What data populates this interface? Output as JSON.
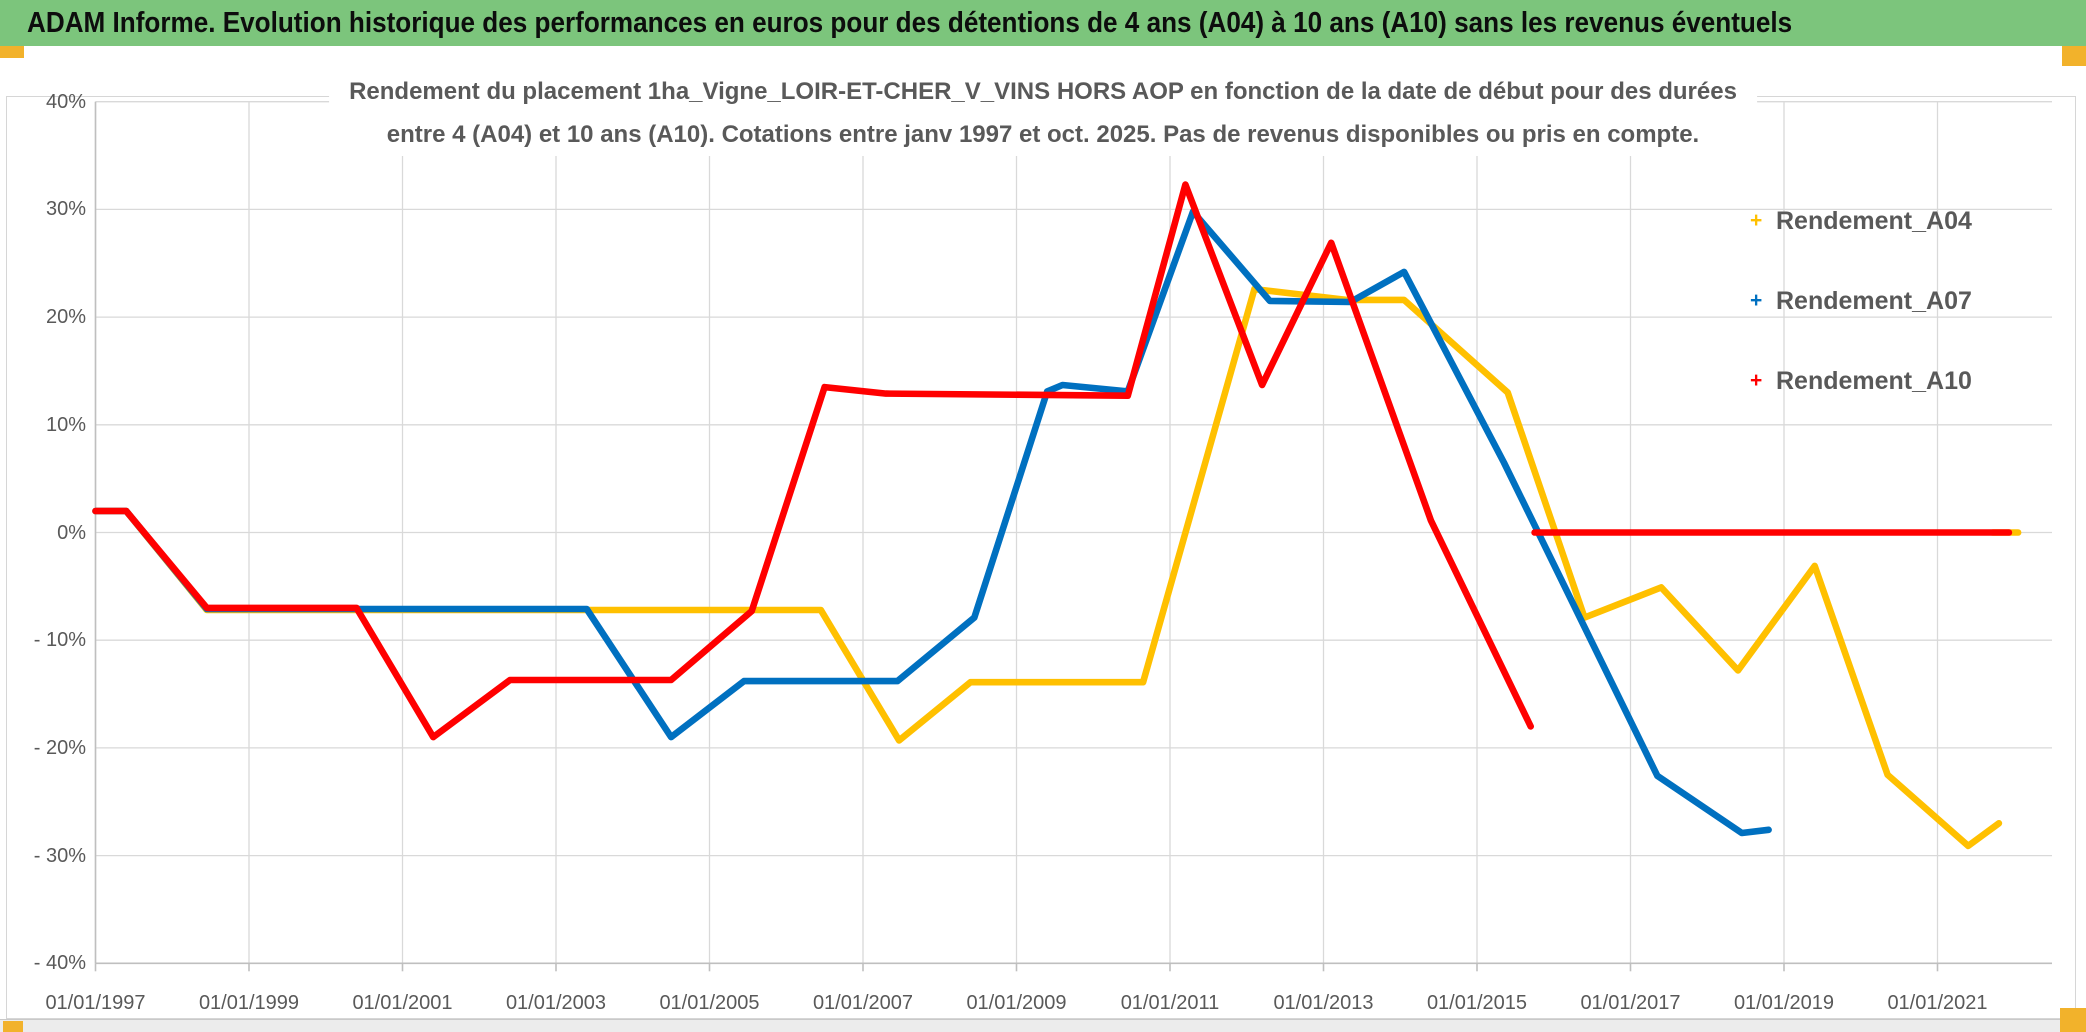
{
  "header": {
    "title": "ADAM Informe. Evolution historique des performances en euros pour des détentions de 4 ans (A04) à 10 ans (A10) sans les revenus éventuels"
  },
  "colors": {
    "header_bg": "#7CC57C",
    "accent": "#F2B22B",
    "grid": "#D9D9D9",
    "axis": "#BFBFBF",
    "text": "#595959"
  },
  "chart_data": {
    "type": "line",
    "title_line1": "Rendement du placement 1ha_Vigne_LOIR-ET-CHER_V_VINS HORS AOP en fonction de la date de début pour des durées",
    "title_line2": "entre 4 (A04) et 10 ans (A10). Cotations entre janv 1997 et oct. 2025. Pas de revenus disponibles ou pris en compte.",
    "xlabel": "",
    "ylabel": "",
    "grid": true,
    "legend_position": "right-top",
    "x_range_years": [
      1997,
      2022.5
    ],
    "ylim": [
      -40,
      40
    ],
    "y_ticks": [
      {
        "label": "40%",
        "value": 40
      },
      {
        "label": "30%",
        "value": 30
      },
      {
        "label": "20%",
        "value": 20
      },
      {
        "label": "10%",
        "value": 10
      },
      {
        "label": "0%",
        "value": 0
      },
      {
        "label": "- 10%",
        "value": -10
      },
      {
        "label": "- 20%",
        "value": -20
      },
      {
        "label": "- 30%",
        "value": -30
      },
      {
        "label": "- 40%",
        "value": -40
      }
    ],
    "x_ticks": [
      {
        "label": "01/01/1997",
        "year": 1997
      },
      {
        "label": "01/01/1999",
        "year": 1999
      },
      {
        "label": "01/01/2001",
        "year": 2001
      },
      {
        "label": "01/01/2003",
        "year": 2003
      },
      {
        "label": "01/01/2005",
        "year": 2005
      },
      {
        "label": "01/01/2007",
        "year": 2007
      },
      {
        "label": "01/01/2009",
        "year": 2009
      },
      {
        "label": "01/01/2011",
        "year": 2011
      },
      {
        "label": "01/01/2013",
        "year": 2013
      },
      {
        "label": "01/01/2015",
        "year": 2015
      },
      {
        "label": "01/01/2017",
        "year": 2017
      },
      {
        "label": "01/01/2019",
        "year": 2019
      },
      {
        "label": "01/01/2021",
        "year": 2021
      }
    ],
    "series": [
      {
        "name": "Rendement_A04",
        "color": "#FFC000",
        "marker": "+",
        "segments": [
          [
            [
              1997.0,
              2
            ],
            [
              1997.4,
              2
            ],
            [
              1998.45,
              -7.2
            ],
            [
              2006.45,
              -7.2
            ],
            [
              2007.47,
              -19.3
            ],
            [
              2008.4,
              -13.9
            ],
            [
              2010.65,
              -13.9
            ],
            [
              2012.1,
              22.6
            ],
            [
              2013.3,
              21.6
            ],
            [
              2014.05,
              21.6
            ],
            [
              2015.4,
              13.0
            ],
            [
              2016.4,
              -7.9
            ],
            [
              2017.4,
              -5.1
            ],
            [
              2018.4,
              -12.8
            ],
            [
              2019.4,
              -3.1
            ],
            [
              2020.35,
              -22.5
            ],
            [
              2021.4,
              -29.1
            ],
            [
              2021.8,
              -27.0
            ]
          ],
          [
            [
              2021.72,
              0
            ],
            [
              2022.05,
              0
            ]
          ]
        ]
      },
      {
        "name": "Rendement_A07",
        "color": "#0070C0",
        "marker": "+",
        "segments": [
          [
            [
              1997.0,
              2
            ],
            [
              1997.4,
              2
            ],
            [
              1998.45,
              -7.1
            ],
            [
              2003.4,
              -7.1
            ],
            [
              2004.5,
              -19.0
            ],
            [
              2005.45,
              -13.8
            ],
            [
              2007.45,
              -13.8
            ],
            [
              2008.45,
              -7.9
            ],
            [
              2009.4,
              13.1
            ],
            [
              2009.6,
              13.7
            ],
            [
              2010.45,
              13.1
            ],
            [
              2011.3,
              29.8
            ],
            [
              2012.3,
              21.5
            ],
            [
              2013.35,
              21.4
            ],
            [
              2014.05,
              24.2
            ],
            [
              2015.35,
              6.5
            ],
            [
              2017.35,
              -22.6
            ],
            [
              2018.45,
              -27.9
            ],
            [
              2018.8,
              -27.6
            ]
          ]
        ]
      },
      {
        "name": "Rendement_A10",
        "color": "#FF0000",
        "marker": "+",
        "segments": [
          [
            [
              1997.0,
              2
            ],
            [
              1997.4,
              2
            ],
            [
              1998.45,
              -7.0
            ],
            [
              2000.4,
              -7.0
            ],
            [
              2001.4,
              -19.0
            ],
            [
              2002.4,
              -13.7
            ],
            [
              2004.5,
              -13.7
            ],
            [
              2005.55,
              -7.3
            ],
            [
              2006.5,
              13.5
            ],
            [
              2007.3,
              12.9
            ],
            [
              2010.45,
              12.7
            ],
            [
              2011.2,
              32.3
            ],
            [
              2012.2,
              13.7
            ],
            [
              2013.1,
              26.9
            ],
            [
              2014.4,
              1.1
            ],
            [
              2015.7,
              -18.0
            ]
          ],
          [
            [
              2015.75,
              0
            ],
            [
              2021.93,
              0
            ]
          ]
        ]
      }
    ]
  }
}
